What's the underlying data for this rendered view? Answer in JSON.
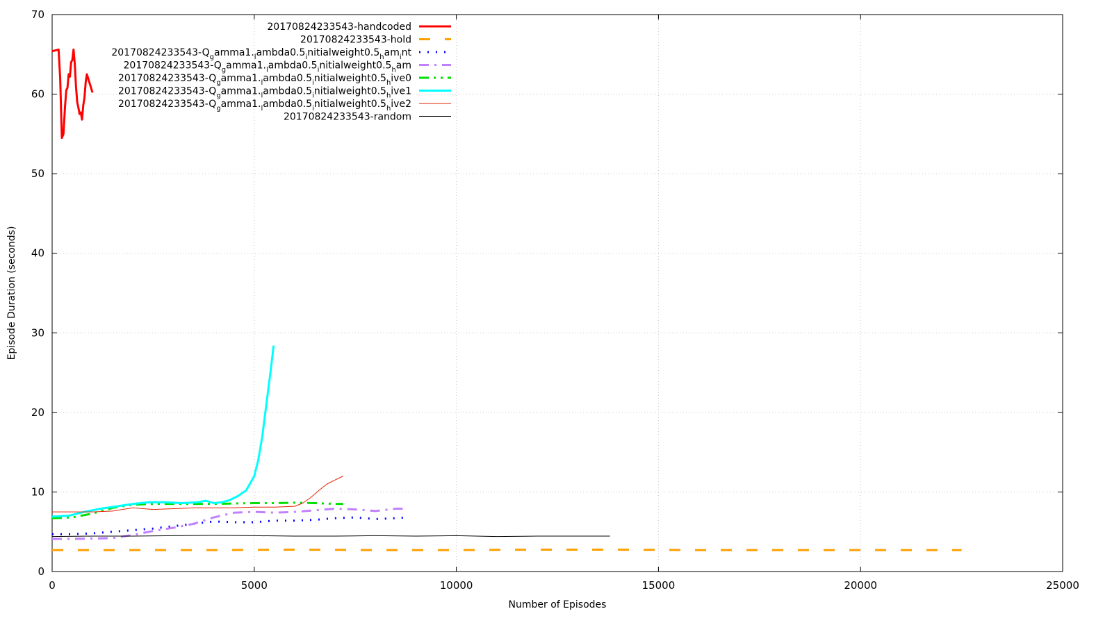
{
  "chart_data": {
    "type": "line",
    "title": "",
    "xlabel": "Number of Episodes",
    "ylabel": "Episode Duration (seconds)",
    "xlim": [
      0,
      25000
    ],
    "ylim": [
      0,
      70
    ],
    "x_ticks": [
      0,
      5000,
      10000,
      15000,
      20000,
      25000
    ],
    "y_ticks": [
      0,
      10,
      20,
      30,
      40,
      50,
      60,
      70
    ],
    "grid": true,
    "legend_position": "top-left",
    "series": [
      {
        "name": "20170824233543-handcoded",
        "color": "#ff0000",
        "dash": "solid",
        "width": 3,
        "x": [
          0,
          80,
          160,
          200,
          240,
          280,
          320,
          350,
          380,
          410,
          440,
          470,
          500,
          530,
          560,
          590,
          620,
          650,
          680,
          710,
          740,
          770,
          800,
          830,
          860,
          890,
          920,
          950,
          980,
          1000
        ],
        "y": [
          65.4,
          65.5,
          65.6,
          62,
          54.5,
          55,
          58.5,
          60.5,
          60.8,
          62.5,
          62.2,
          64,
          64.3,
          65.6,
          63.8,
          61,
          59,
          58.3,
          57.5,
          57.7,
          56.8,
          58.6,
          59.5,
          61.5,
          62.5,
          62,
          61.5,
          61,
          60.5,
          60.2
        ]
      },
      {
        "name": "20170824233543-hold",
        "color": "#ff9f00",
        "dash": "dash",
        "width": 3,
        "x": [
          0,
          2000,
          4000,
          6000,
          8000,
          10000,
          12000,
          14000,
          16000,
          18000,
          20000,
          22500
        ],
        "y": [
          2.7,
          2.7,
          2.7,
          2.75,
          2.7,
          2.7,
          2.75,
          2.75,
          2.7,
          2.7,
          2.7,
          2.7
        ]
      },
      {
        "name": "20170824233543-Q_gamma1._lambda0.5_initialweight0.5_ham_int",
        "color": "#0000ff",
        "dash": "dot",
        "width": 3,
        "x": [
          0,
          500,
          1000,
          1500,
          2000,
          2500,
          3000,
          3500,
          4000,
          4500,
          5000,
          5500,
          6000,
          6500,
          7000,
          7500,
          8000,
          8500,
          8800
        ],
        "y": [
          4.7,
          4.7,
          4.8,
          5.0,
          5.2,
          5.4,
          5.7,
          6.0,
          6.3,
          6.2,
          6.2,
          6.4,
          6.4,
          6.5,
          6.7,
          6.8,
          6.6,
          6.7,
          6.8
        ]
      },
      {
        "name": "20170824233543-Q_gamma1._lambda0.5_initialweight0.5_ham",
        "color": "#c080ff",
        "dash": "dashdot",
        "width": 3,
        "x": [
          0,
          500,
          1000,
          1500,
          2000,
          2500,
          3000,
          3500,
          4000,
          4500,
          5000,
          5500,
          6000,
          6500,
          7000,
          7500,
          8000,
          8500,
          8800
        ],
        "y": [
          4.1,
          4.1,
          4.15,
          4.2,
          4.6,
          5.1,
          5.5,
          6.0,
          6.8,
          7.4,
          7.5,
          7.4,
          7.5,
          7.7,
          7.9,
          7.8,
          7.6,
          7.9,
          7.9
        ]
      },
      {
        "name": "20170824233543-Q_gamma1._lambda0.5_initialweight0.5_hive0",
        "color": "#00e000",
        "dash": "dashdotdot",
        "width": 3,
        "x": [
          0,
          500,
          1000,
          1500,
          2000,
          2500,
          3000,
          3500,
          4000,
          4500,
          5000,
          5500,
          6000,
          6500,
          7000,
          7200
        ],
        "y": [
          6.7,
          6.8,
          7.3,
          8.0,
          8.4,
          8.5,
          8.5,
          8.5,
          8.5,
          8.55,
          8.6,
          8.6,
          8.65,
          8.6,
          8.5,
          8.5
        ]
      },
      {
        "name": "20170824233543-Q_gamma1._lambda0.5_initialweight0.5_hive1",
        "color": "#00ffff",
        "dash": "solid",
        "width": 3,
        "x": [
          0,
          400,
          800,
          1200,
          1600,
          2000,
          2400,
          2800,
          3200,
          3600,
          3800,
          4000,
          4200,
          4400,
          4600,
          4800,
          5000,
          5100,
          5200,
          5300,
          5400,
          5480
        ],
        "y": [
          6.9,
          7.0,
          7.5,
          7.9,
          8.2,
          8.5,
          8.7,
          8.7,
          8.6,
          8.7,
          8.9,
          8.6,
          8.7,
          9.0,
          9.5,
          10.2,
          12,
          14,
          17,
          21,
          25,
          28.4
        ]
      },
      {
        "name": "20170824233543-Q_gamma1._lambda0.5_initialweight0.5_hive2",
        "color": "#e02000",
        "dash": "solid",
        "width": 1,
        "x": [
          0,
          500,
          1000,
          1500,
          2000,
          2500,
          3000,
          3500,
          4000,
          4500,
          5000,
          5500,
          6000,
          6200,
          6400,
          6600,
          6800,
          7000,
          7200
        ],
        "y": [
          7.5,
          7.5,
          7.5,
          7.6,
          8.0,
          7.8,
          7.9,
          8.0,
          8.0,
          8.0,
          8.1,
          8.1,
          8.2,
          8.6,
          9.3,
          10.2,
          11.0,
          11.5,
          12.0
        ]
      },
      {
        "name": "20170824233543-random",
        "color": "#000000",
        "dash": "solid",
        "width": 1,
        "x": [
          0,
          1000,
          2000,
          3000,
          4000,
          5000,
          6000,
          7000,
          8000,
          9000,
          10000,
          11000,
          12000,
          13000,
          13800
        ],
        "y": [
          4.4,
          4.45,
          4.45,
          4.5,
          4.55,
          4.5,
          4.45,
          4.45,
          4.5,
          4.45,
          4.5,
          4.4,
          4.45,
          4.45,
          4.45
        ]
      }
    ]
  }
}
